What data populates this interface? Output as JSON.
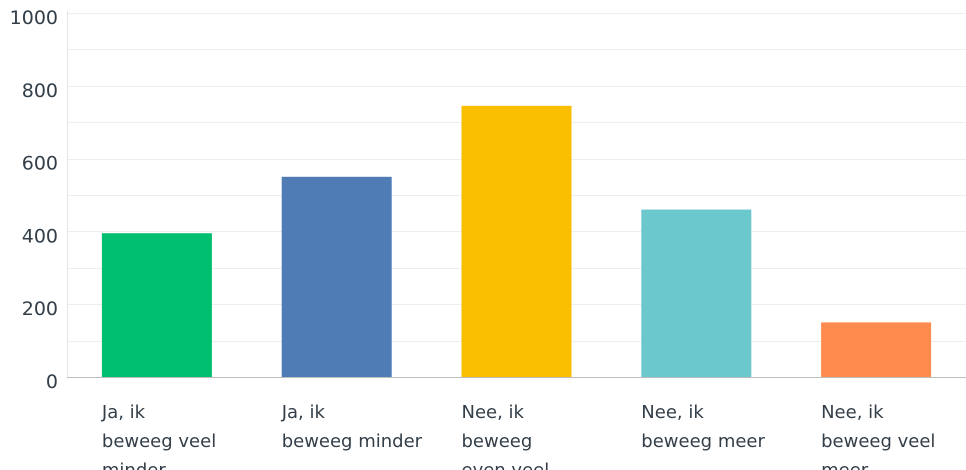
{
  "chart_data": {
    "type": "bar",
    "title": "",
    "xlabel": "",
    "ylabel": "",
    "ylim": [
      0,
      1000
    ],
    "yticks": [
      0,
      200,
      400,
      600,
      800,
      1000
    ],
    "grid": true,
    "categories": [
      [
        "Ja, ik",
        "beweeg veel",
        "minder"
      ],
      [
        "Ja, ik",
        "beweeg minder"
      ],
      [
        "Nee, ik",
        "beweeg",
        "even veel"
      ],
      [
        "Nee, ik",
        "beweeg meer"
      ],
      [
        "Nee, ik",
        "beweeg veel",
        "meer"
      ]
    ],
    "values": [
      395,
      550,
      745,
      460,
      150
    ],
    "colors": [
      "#00bf6f",
      "#507cb6",
      "#f9be00",
      "#6bc8cd",
      "#ff8b4f"
    ]
  }
}
